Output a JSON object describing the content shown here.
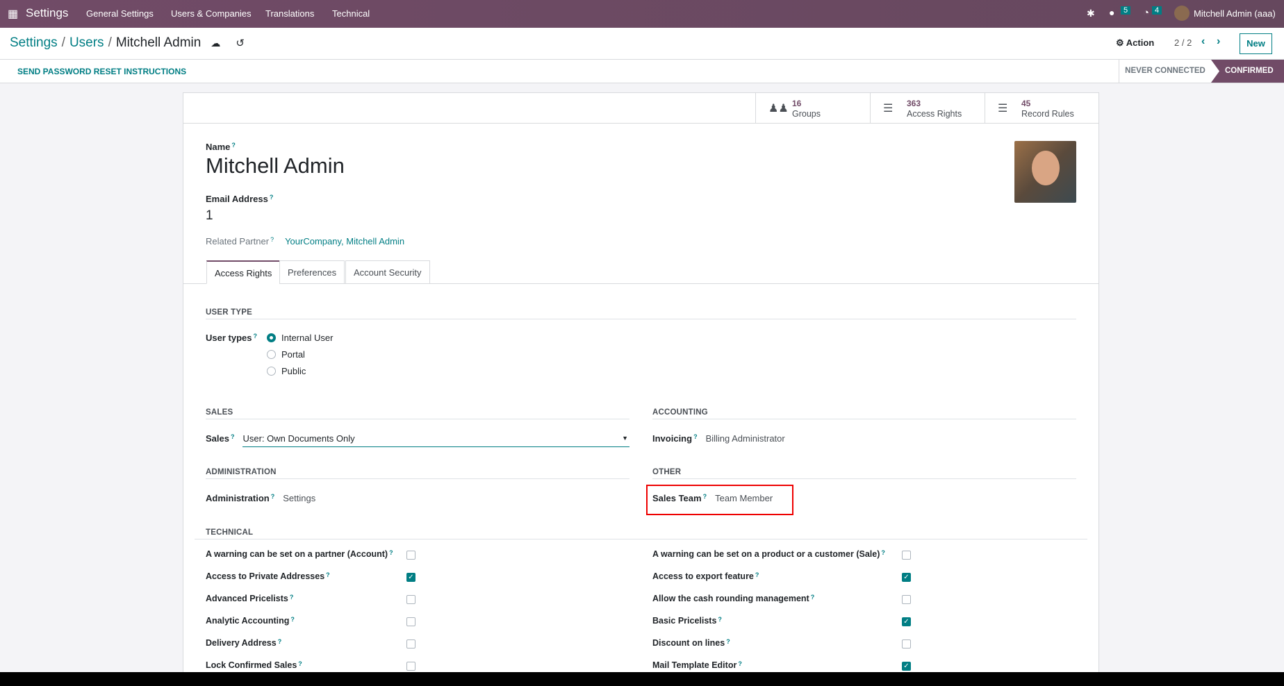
{
  "navbar": {
    "app": "Settings",
    "menus": [
      "General Settings",
      "Users & Companies",
      "Translations",
      "Technical"
    ],
    "messages_count": "5",
    "activities_count": "4",
    "user": "Mitchell Admin (aaa)",
    "brand_color": "#714b67"
  },
  "control": {
    "breadcrumb": [
      "Settings",
      "Users",
      "Mitchell Admin"
    ],
    "action": "Action",
    "pager": "2 / 2",
    "new": "New"
  },
  "statusbar": {
    "button": "SEND PASSWORD RESET INSTRUCTIONS",
    "stages": [
      "NEVER CONNECTED",
      "CONFIRMED"
    ],
    "active": "CONFIRMED"
  },
  "smart_buttons": [
    {
      "count": "16",
      "label": "Groups",
      "icon": "users-icon"
    },
    {
      "count": "363",
      "label": "Access Rights",
      "icon": "list-icon"
    },
    {
      "count": "45",
      "label": "Record Rules",
      "icon": "list-icon"
    }
  ],
  "form": {
    "name_label": "Name",
    "name": "Mitchell Admin",
    "email_label": "Email Address",
    "email": "1",
    "partner_label": "Related Partner",
    "partner": "YourCompany, Mitchell Admin",
    "help": "?"
  },
  "tabs": [
    "Access Rights",
    "Preferences",
    "Account Security"
  ],
  "user_type": {
    "title": "USER TYPE",
    "label": "User types",
    "options": [
      "Internal User",
      "Portal",
      "Public"
    ],
    "selected": "Internal User"
  },
  "sales": {
    "title": "SALES",
    "label": "Sales",
    "value": "User: Own Documents Only"
  },
  "accounting": {
    "title": "ACCOUNTING",
    "label": "Invoicing",
    "value": "Billing Administrator"
  },
  "administration": {
    "title": "ADMINISTRATION",
    "label": "Administration",
    "value": "Settings"
  },
  "other": {
    "title": "OTHER",
    "label": "Sales Team",
    "value": "Team Member"
  },
  "technical": {
    "title": "TECHNICAL",
    "left": [
      {
        "label": "A warning can be set on a partner (Account)",
        "checked": false
      },
      {
        "label": "Access to Private Addresses",
        "checked": true
      },
      {
        "label": "Advanced Pricelists",
        "checked": false
      },
      {
        "label": "Analytic Accounting",
        "checked": false
      },
      {
        "label": "Delivery Address",
        "checked": false
      },
      {
        "label": "Lock Confirmed Sales",
        "checked": false
      }
    ],
    "right": [
      {
        "label": "A warning can be set on a product or a customer (Sale)",
        "checked": false
      },
      {
        "label": "Access to export feature",
        "checked": true
      },
      {
        "label": "Allow the cash rounding management",
        "checked": false
      },
      {
        "label": "Basic Pricelists",
        "checked": true
      },
      {
        "label": "Discount on lines",
        "checked": false
      },
      {
        "label": "Mail Template Editor",
        "checked": true
      }
    ]
  }
}
